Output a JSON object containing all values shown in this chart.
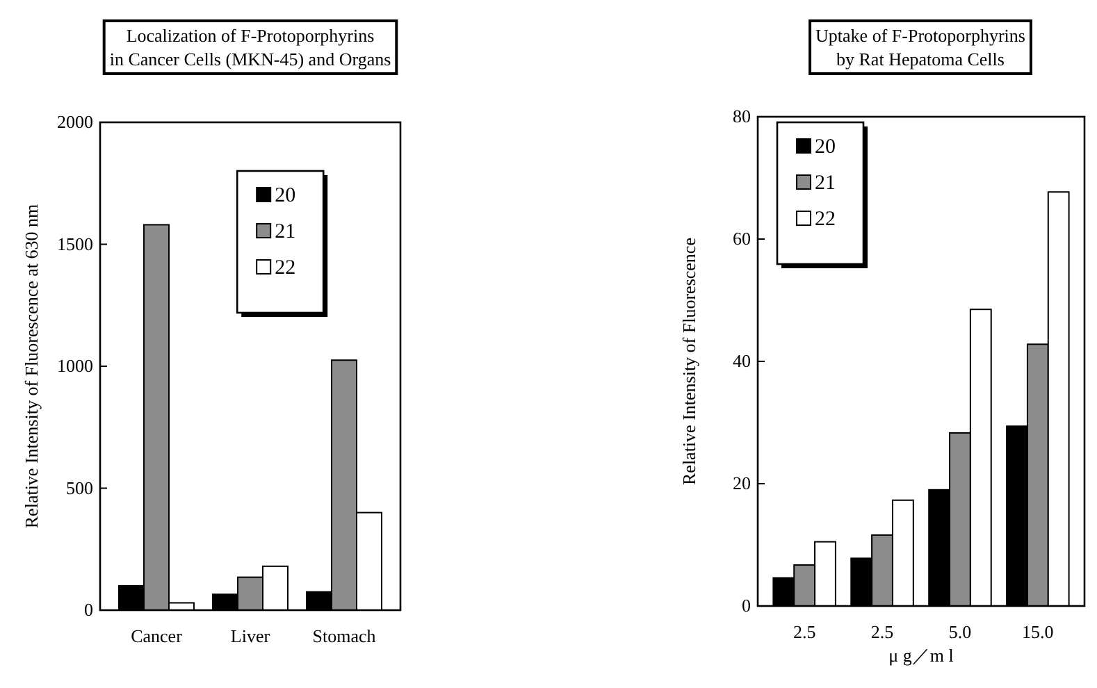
{
  "chart_data": [
    {
      "type": "bar",
      "title": "Localization of F-Protoporphyrins\nin Cancer Cells (MKN-45) and Organs",
      "ylabel": "Relative Intensity of Fluorescence at 630 nm",
      "categories": [
        "Cancer",
        "Liver",
        "Stomach"
      ],
      "series": [
        {
          "name": "20",
          "color": "#000000",
          "values": [
            100,
            65,
            75
          ]
        },
        {
          "name": "21",
          "color": "#8c8c8c",
          "values": [
            1580,
            135,
            1025
          ]
        },
        {
          "name": "22",
          "color": "#ffffff",
          "values": [
            30,
            180,
            400
          ]
        }
      ],
      "ylim": [
        0,
        2000
      ],
      "yticks": [
        0,
        500,
        1000,
        1500,
        2000
      ],
      "grid": false,
      "legend": "top"
    },
    {
      "type": "bar",
      "title": "Uptake of F-Protoporphyrins\nby Rat Hepatoma Cells",
      "ylabel": "Relative Intensity of Fluorescence",
      "xlabel": "μ g／m l",
      "categories": [
        "2.5",
        "2.5",
        "5.0",
        "15.0"
      ],
      "series": [
        {
          "name": "20",
          "color": "#000000",
          "values": [
            4.6,
            7.8,
            19.0,
            29.4
          ]
        },
        {
          "name": "21",
          "color": "#8c8c8c",
          "values": [
            6.7,
            11.6,
            28.3,
            42.8
          ]
        },
        {
          "name": "22",
          "color": "#ffffff",
          "values": [
            10.5,
            17.3,
            48.5,
            67.7
          ]
        }
      ],
      "ylim": [
        0,
        80
      ],
      "yticks": [
        0,
        20,
        40,
        60,
        80
      ],
      "grid": false,
      "legend": "top left"
    }
  ]
}
